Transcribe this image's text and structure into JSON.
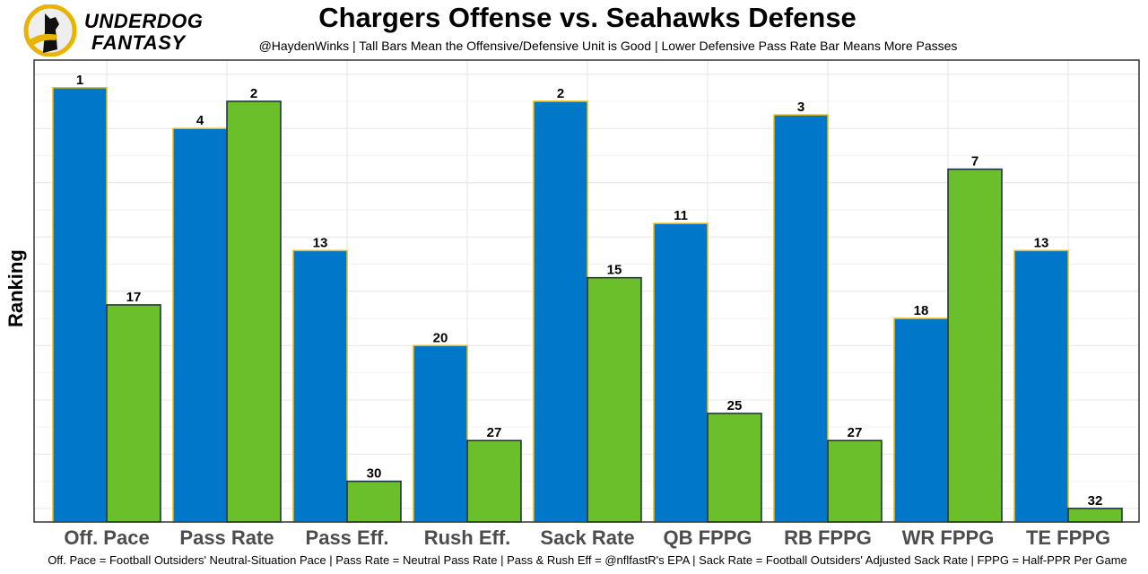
{
  "logo": {
    "line1": "UNDERDOG",
    "line2": "FANTASY"
  },
  "chart_data": {
    "type": "bar",
    "title": "Chargers Offense vs. Seahawks Defense",
    "subtitle": "@HaydenWinks | Tall Bars Mean the Offensive/Defensive Unit is Good | Lower Defensive Pass Rate Bar Means More Passes",
    "caption": "Off. Pace = Football Outsiders' Neutral-Situation Pace | Pass Rate = Neutral Pass Rate | Pass & Rush Eff = @nflfastR's EPA | Sack Rate = Football Outsiders' Adjusted Sack Rate | FPPG = Half-PPR Per Game",
    "ylabel": "Ranking",
    "xlabel": "",
    "categories": [
      "Off. Pace",
      "Pass Rate",
      "Pass Eff.",
      "Rush Eff.",
      "Sack Rate",
      "QB FPPG",
      "RB FPPG",
      "WR FPPG",
      "TE FPPG"
    ],
    "series": [
      {
        "values": [
          1,
          4,
          13,
          20,
          2,
          11,
          3,
          18,
          13
        ],
        "color": "#0077C8",
        "border": "#F2B800"
      },
      {
        "values": [
          17,
          2,
          30,
          27,
          15,
          25,
          27,
          7,
          32
        ],
        "color": "#6ABF2A",
        "border": "#1B2A45"
      }
    ],
    "scale": "bar height = 33 - rank",
    "grid": true
  }
}
